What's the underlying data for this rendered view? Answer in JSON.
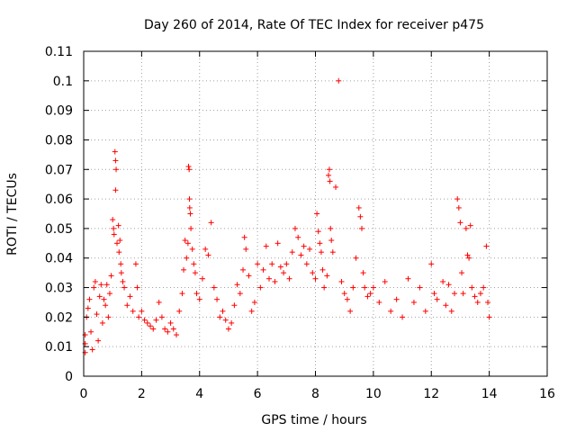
{
  "chart_data": {
    "type": "scatter",
    "title": "Day 260 of 2014, Rate Of TEC Index for receiver p475",
    "xlabel": "GPS time / hours",
    "ylabel": "ROTI / TECUs",
    "xlim": [
      0,
      16
    ],
    "ylim": [
      0,
      0.11
    ],
    "xticks": [
      0,
      2,
      4,
      6,
      8,
      10,
      12,
      14,
      16
    ],
    "xtick_labels": [
      "0",
      "2",
      "4",
      "6",
      "8",
      "10",
      "12",
      "14",
      "16"
    ],
    "yticks": [
      0,
      0.01,
      0.02,
      0.03,
      0.04,
      0.05,
      0.06,
      0.07,
      0.08,
      0.09,
      0.1,
      0.11
    ],
    "ytick_labels": [
      "0",
      "0.01",
      "0.02",
      "0.03",
      "0.04",
      "0.05",
      "0.06",
      "0.07",
      "0.08",
      "0.09",
      "0.1",
      "0.11"
    ],
    "grid": true,
    "grid_style": "dotted",
    "marker": "+",
    "series": [
      {
        "name": "ROTI",
        "color": "#ff0000",
        "points": [
          [
            0.05,
            0.008
          ],
          [
            0.05,
            0.011
          ],
          [
            0.05,
            0.014
          ],
          [
            0.1,
            0.02
          ],
          [
            0.15,
            0.023
          ],
          [
            0.2,
            0.026
          ],
          [
            0.25,
            0.015
          ],
          [
            0.3,
            0.009
          ],
          [
            0.35,
            0.03
          ],
          [
            0.4,
            0.032
          ],
          [
            0.45,
            0.021
          ],
          [
            0.5,
            0.012
          ],
          [
            0.55,
            0.027
          ],
          [
            0.6,
            0.031
          ],
          [
            0.65,
            0.018
          ],
          [
            0.7,
            0.026
          ],
          [
            0.75,
            0.024
          ],
          [
            0.8,
            0.031
          ],
          [
            0.85,
            0.02
          ],
          [
            0.9,
            0.028
          ],
          [
            0.95,
            0.034
          ],
          [
            1.0,
            0.053
          ],
          [
            1.03,
            0.05
          ],
          [
            1.05,
            0.048
          ],
          [
            1.08,
            0.076
          ],
          [
            1.1,
            0.073
          ],
          [
            1.12,
            0.07
          ],
          [
            1.1,
            0.063
          ],
          [
            1.15,
            0.045
          ],
          [
            1.2,
            0.051
          ],
          [
            1.22,
            0.042
          ],
          [
            1.25,
            0.046
          ],
          [
            1.28,
            0.038
          ],
          [
            1.3,
            0.035
          ],
          [
            1.35,
            0.032
          ],
          [
            1.4,
            0.03
          ],
          [
            1.5,
            0.024
          ],
          [
            1.6,
            0.027
          ],
          [
            1.7,
            0.022
          ],
          [
            1.8,
            0.038
          ],
          [
            1.85,
            0.03
          ],
          [
            1.9,
            0.02
          ],
          [
            2.0,
            0.022
          ],
          [
            2.1,
            0.019
          ],
          [
            2.2,
            0.018
          ],
          [
            2.3,
            0.017
          ],
          [
            2.4,
            0.016
          ],
          [
            2.5,
            0.019
          ],
          [
            2.6,
            0.025
          ],
          [
            2.7,
            0.02
          ],
          [
            2.8,
            0.016
          ],
          [
            2.9,
            0.015
          ],
          [
            3.0,
            0.018
          ],
          [
            3.1,
            0.016
          ],
          [
            3.2,
            0.014
          ],
          [
            3.3,
            0.022
          ],
          [
            3.4,
            0.028
          ],
          [
            3.45,
            0.036
          ],
          [
            3.5,
            0.046
          ],
          [
            3.55,
            0.04
          ],
          [
            3.6,
            0.045
          ],
          [
            3.62,
            0.071
          ],
          [
            3.64,
            0.07
          ],
          [
            3.65,
            0.06
          ],
          [
            3.66,
            0.057
          ],
          [
            3.68,
            0.055
          ],
          [
            3.7,
            0.05
          ],
          [
            3.75,
            0.043
          ],
          [
            3.8,
            0.038
          ],
          [
            3.85,
            0.035
          ],
          [
            3.9,
            0.028
          ],
          [
            4.0,
            0.026
          ],
          [
            4.1,
            0.033
          ],
          [
            4.2,
            0.043
          ],
          [
            4.3,
            0.041
          ],
          [
            4.4,
            0.052
          ],
          [
            4.5,
            0.03
          ],
          [
            4.6,
            0.026
          ],
          [
            4.7,
            0.02
          ],
          [
            4.8,
            0.022
          ],
          [
            4.9,
            0.019
          ],
          [
            5.0,
            0.016
          ],
          [
            5.1,
            0.018
          ],
          [
            5.2,
            0.024
          ],
          [
            5.3,
            0.031
          ],
          [
            5.4,
            0.028
          ],
          [
            5.5,
            0.036
          ],
          [
            5.55,
            0.047
          ],
          [
            5.6,
            0.043
          ],
          [
            5.7,
            0.034
          ],
          [
            5.8,
            0.022
          ],
          [
            5.9,
            0.025
          ],
          [
            6.0,
            0.038
          ],
          [
            6.1,
            0.03
          ],
          [
            6.2,
            0.036
          ],
          [
            6.3,
            0.044
          ],
          [
            6.4,
            0.033
          ],
          [
            6.5,
            0.038
          ],
          [
            6.6,
            0.032
          ],
          [
            6.7,
            0.045
          ],
          [
            6.8,
            0.037
          ],
          [
            6.9,
            0.035
          ],
          [
            7.0,
            0.038
          ],
          [
            7.1,
            0.033
          ],
          [
            7.2,
            0.042
          ],
          [
            7.3,
            0.05
          ],
          [
            7.4,
            0.047
          ],
          [
            7.5,
            0.041
          ],
          [
            7.6,
            0.044
          ],
          [
            7.7,
            0.038
          ],
          [
            7.8,
            0.043
          ],
          [
            7.9,
            0.035
          ],
          [
            8.0,
            0.033
          ],
          [
            8.05,
            0.055
          ],
          [
            8.1,
            0.049
          ],
          [
            8.15,
            0.045
          ],
          [
            8.2,
            0.042
          ],
          [
            8.25,
            0.036
          ],
          [
            8.3,
            0.03
          ],
          [
            8.4,
            0.034
          ],
          [
            8.45,
            0.068
          ],
          [
            8.48,
            0.07
          ],
          [
            8.5,
            0.066
          ],
          [
            8.52,
            0.05
          ],
          [
            8.55,
            0.046
          ],
          [
            8.6,
            0.042
          ],
          [
            8.7,
            0.064
          ],
          [
            8.8,
            0.1
          ],
          [
            8.9,
            0.032
          ],
          [
            9.0,
            0.028
          ],
          [
            9.1,
            0.026
          ],
          [
            9.2,
            0.022
          ],
          [
            9.3,
            0.03
          ],
          [
            9.4,
            0.04
          ],
          [
            9.5,
            0.057
          ],
          [
            9.55,
            0.054
          ],
          [
            9.6,
            0.05
          ],
          [
            9.65,
            0.035
          ],
          [
            9.7,
            0.03
          ],
          [
            9.8,
            0.027
          ],
          [
            9.9,
            0.028
          ],
          [
            10.0,
            0.03
          ],
          [
            10.2,
            0.025
          ],
          [
            10.4,
            0.032
          ],
          [
            10.6,
            0.022
          ],
          [
            10.8,
            0.026
          ],
          [
            11.0,
            0.02
          ],
          [
            11.2,
            0.033
          ],
          [
            11.4,
            0.025
          ],
          [
            11.6,
            0.03
          ],
          [
            11.8,
            0.022
          ],
          [
            12.0,
            0.038
          ],
          [
            12.1,
            0.028
          ],
          [
            12.2,
            0.026
          ],
          [
            12.4,
            0.032
          ],
          [
            12.5,
            0.024
          ],
          [
            12.6,
            0.031
          ],
          [
            12.7,
            0.022
          ],
          [
            12.8,
            0.028
          ],
          [
            12.9,
            0.06
          ],
          [
            12.95,
            0.057
          ],
          [
            13.0,
            0.052
          ],
          [
            13.05,
            0.035
          ],
          [
            13.1,
            0.028
          ],
          [
            13.2,
            0.05
          ],
          [
            13.25,
            0.041
          ],
          [
            13.3,
            0.04
          ],
          [
            13.35,
            0.051
          ],
          [
            13.4,
            0.03
          ],
          [
            13.5,
            0.027
          ],
          [
            13.6,
            0.025
          ],
          [
            13.7,
            0.028
          ],
          [
            13.8,
            0.03
          ],
          [
            13.9,
            0.044
          ],
          [
            13.95,
            0.025
          ],
          [
            14.0,
            0.02
          ]
        ]
      }
    ]
  }
}
